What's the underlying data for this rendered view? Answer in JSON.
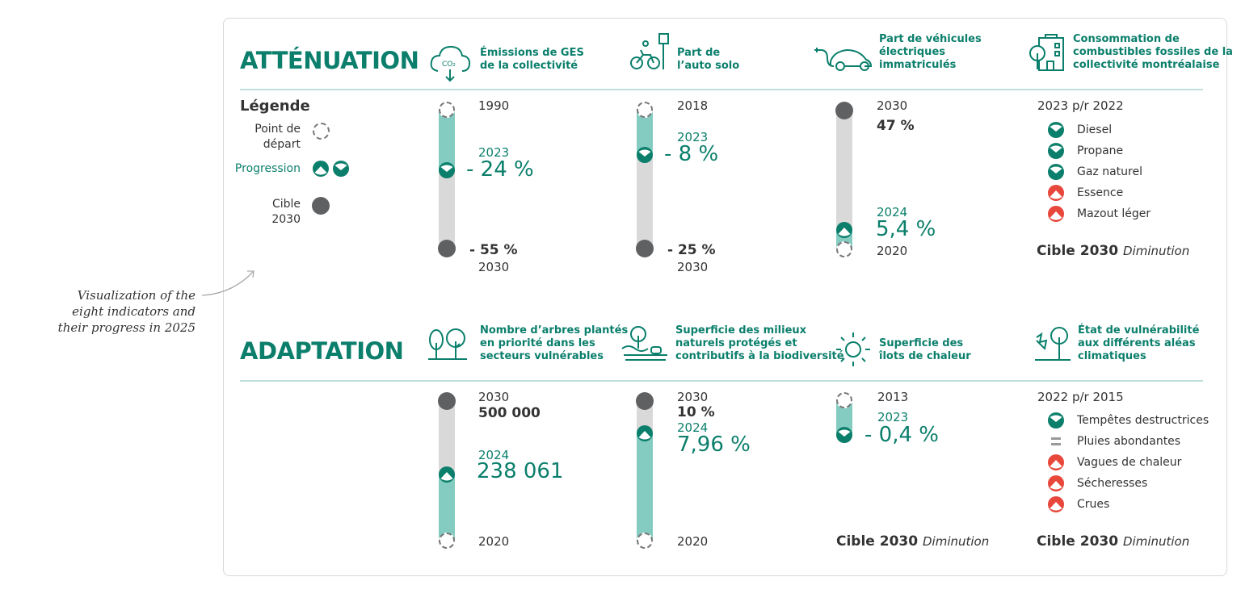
{
  "note": [
    "Visualization of the",
    "eight indicators and",
    "their progress in 2025"
  ],
  "colors": {
    "accent": "#0b7f6c",
    "fill": "#84cbc1",
    "track": "#d9d9d9",
    "target": "#5f6062",
    "negative": "#e8473b"
  },
  "attenuation": {
    "title": "ATTÉNUATION",
    "legend": {
      "title": "Légende",
      "start": [
        "Point de",
        "départ"
      ],
      "progress": "Progression",
      "target": [
        "Cible",
        "2030"
      ]
    },
    "indicators": [
      {
        "icon": "co2-cloud-icon",
        "title": [
          "Émissions de GES",
          "de la collectivité"
        ],
        "start_year": "1990",
        "current_year": "2023",
        "current_value": "- 24 %",
        "target_value": "- 55 %",
        "target_year": "2030",
        "trend": "down"
      },
      {
        "icon": "bicycle-icon",
        "title": [
          "Part de",
          "l’auto solo"
        ],
        "start_year": "2018",
        "current_year": "2023",
        "current_value": "- 8 %",
        "target_value": "- 25 %",
        "target_year": "2030",
        "trend": "down"
      },
      {
        "icon": "electric-car-icon",
        "title": [
          "Part de véhicules",
          "électriques",
          "immatriculés"
        ],
        "target_year": "2030",
        "target_value": "47 %",
        "current_year": "2024",
        "current_value": "5,4 %",
        "start_year": "2020",
        "trend": "up"
      },
      {
        "icon": "building-tree-icon",
        "title": [
          "Consommation de",
          "combustibles fossiles de la",
          "collectivité montréalaise"
        ],
        "period": "2023 p/r 2022",
        "items": [
          {
            "label": "Diesel",
            "trend": "down"
          },
          {
            "label": "Propane",
            "trend": "down"
          },
          {
            "label": "Gaz naturel",
            "trend": "down"
          },
          {
            "label": "Essence",
            "trend": "up-negative"
          },
          {
            "label": "Mazout léger",
            "trend": "up-negative"
          }
        ],
        "cible": "Cible 2030",
        "cible_dir": "Diminution"
      }
    ]
  },
  "adaptation": {
    "title": "ADAPTATION",
    "indicators": [
      {
        "icon": "trees-icon",
        "title": [
          "Nombre d’arbres plantés",
          "en priorité dans les",
          "secteurs vulnérables"
        ],
        "target_year": "2030",
        "target_value": "500 000",
        "current_year": "2024",
        "current_value": "238 061",
        "start_year": "2020",
        "trend": "up"
      },
      {
        "icon": "natural-area-icon",
        "title": [
          "Superficie des milieux",
          "naturels protégés et",
          "contributifs à la biodiversité"
        ],
        "target_year": "2030",
        "target_value": "10 %",
        "current_year": "2024",
        "current_value": "7,96 %",
        "start_year": "2020",
        "trend": "up"
      },
      {
        "icon": "sun-icon",
        "title": [
          "Superficie des",
          "îlots de chaleur"
        ],
        "start_year": "2013",
        "current_year": "2023",
        "current_value": "- 0,4 %",
        "trend": "down",
        "cible": "Cible 2030",
        "cible_dir": "Diminution"
      },
      {
        "icon": "storm-tree-icon",
        "title": [
          "État de vulnérabilité",
          "aux différents aléas",
          "climatiques"
        ],
        "period": "2022 p/r 2015",
        "items": [
          {
            "label": "Tempêtes destructrices",
            "trend": "down"
          },
          {
            "label": "Pluies abondantes",
            "trend": "equal"
          },
          {
            "label": "Vagues de chaleur",
            "trend": "up-negative"
          },
          {
            "label": "Sécheresses",
            "trend": "up-negative"
          },
          {
            "label": "Crues",
            "trend": "up-negative"
          }
        ],
        "cible": "Cible 2030",
        "cible_dir": "Diminution"
      }
    ]
  }
}
